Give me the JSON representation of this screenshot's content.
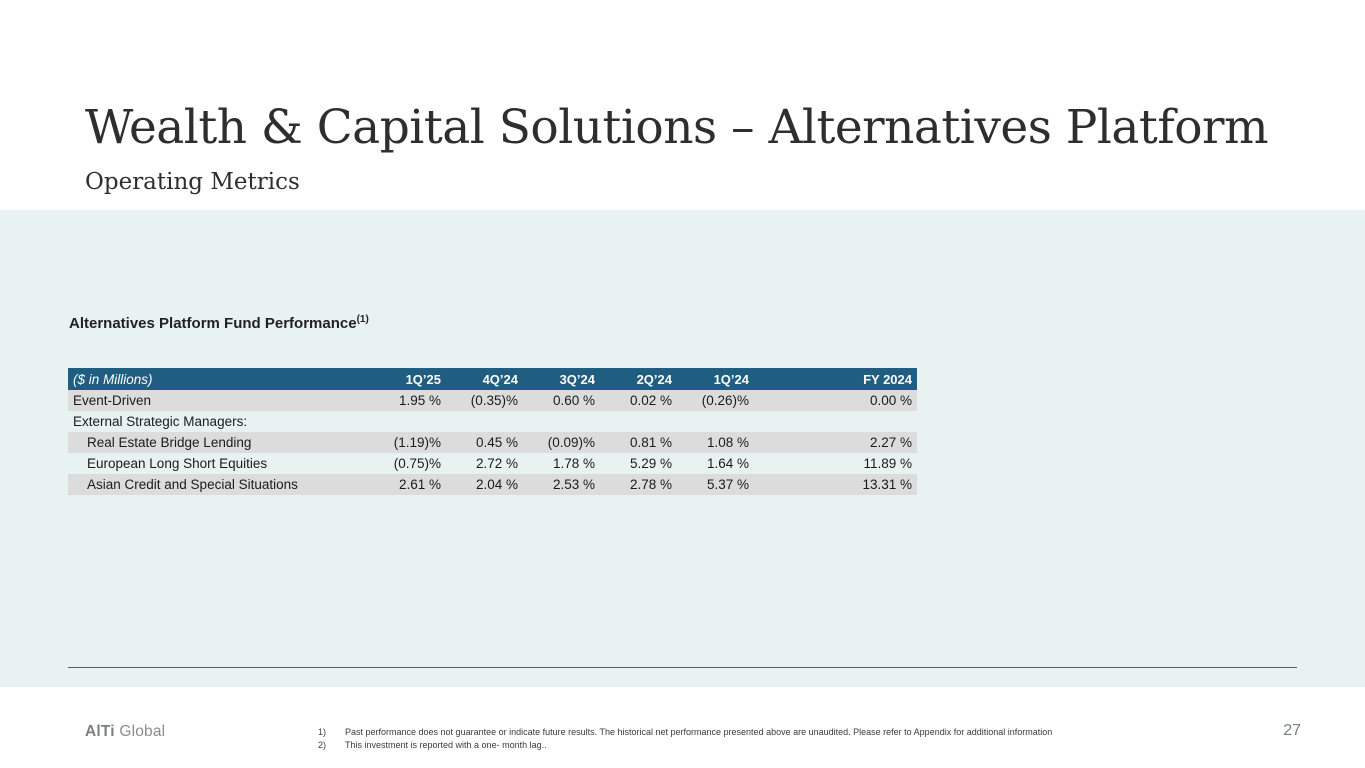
{
  "slide": {
    "title": "Wealth & Capital Solutions – Alternatives Platform",
    "subtitle": "Operating Metrics",
    "page_number": "27"
  },
  "section": {
    "heading": "Alternatives Platform Fund Performance",
    "heading_superscript": "(1)"
  },
  "table": {
    "header": {
      "label": "($ in Millions)",
      "columns": [
        "1Q’25",
        "4Q’24",
        "3Q’24",
        "2Q’24",
        "1Q’24",
        "FY 2024"
      ]
    },
    "rows": [
      {
        "label": "Event-Driven",
        "indent": false,
        "striped": true,
        "values": [
          "1.95 %",
          "(0.35)%",
          "0.60 %",
          "0.02 %",
          "(0.26)%",
          "0.00 %"
        ]
      },
      {
        "label": "External Strategic Managers:",
        "indent": false,
        "striped": false,
        "values": [
          "",
          "",
          "",
          "",
          "",
          ""
        ]
      },
      {
        "label": "Real Estate Bridge Lending",
        "indent": true,
        "striped": true,
        "values": [
          "(1.19)%",
          "0.45 %",
          "(0.09)%",
          "0.81 %",
          "1.08 %",
          "2.27 %"
        ]
      },
      {
        "label": "European Long Short Equities",
        "indent": true,
        "striped": false,
        "values": [
          "(0.75)%",
          "2.72 %",
          "1.78 %",
          "5.29 %",
          "1.64 %",
          "11.89 %"
        ]
      },
      {
        "label": "Asian Credit and Special Situations",
        "indent": true,
        "striped": true,
        "values": [
          "2.61 %",
          "2.04 %",
          "2.53 %",
          "2.78 %",
          "5.37 %",
          "13.31 %"
        ]
      }
    ]
  },
  "footer": {
    "logo_bold": "AlTi",
    "logo_regular": "Global",
    "footnotes": [
      {
        "num": "1)",
        "text": "Past performance does not guarantee or indicate future results. The historical net performance presented above are unaudited. Please refer to Appendix for additional information"
      },
      {
        "num": "2)",
        "text": "This investment is reported with a one- month lag.."
      }
    ]
  },
  "colors": {
    "table_header_bg": "#1F5E80",
    "row_stripe": "#DCDCDC",
    "section_band_bg": "#E8F3F1",
    "title_text": "#2e2e2e"
  }
}
